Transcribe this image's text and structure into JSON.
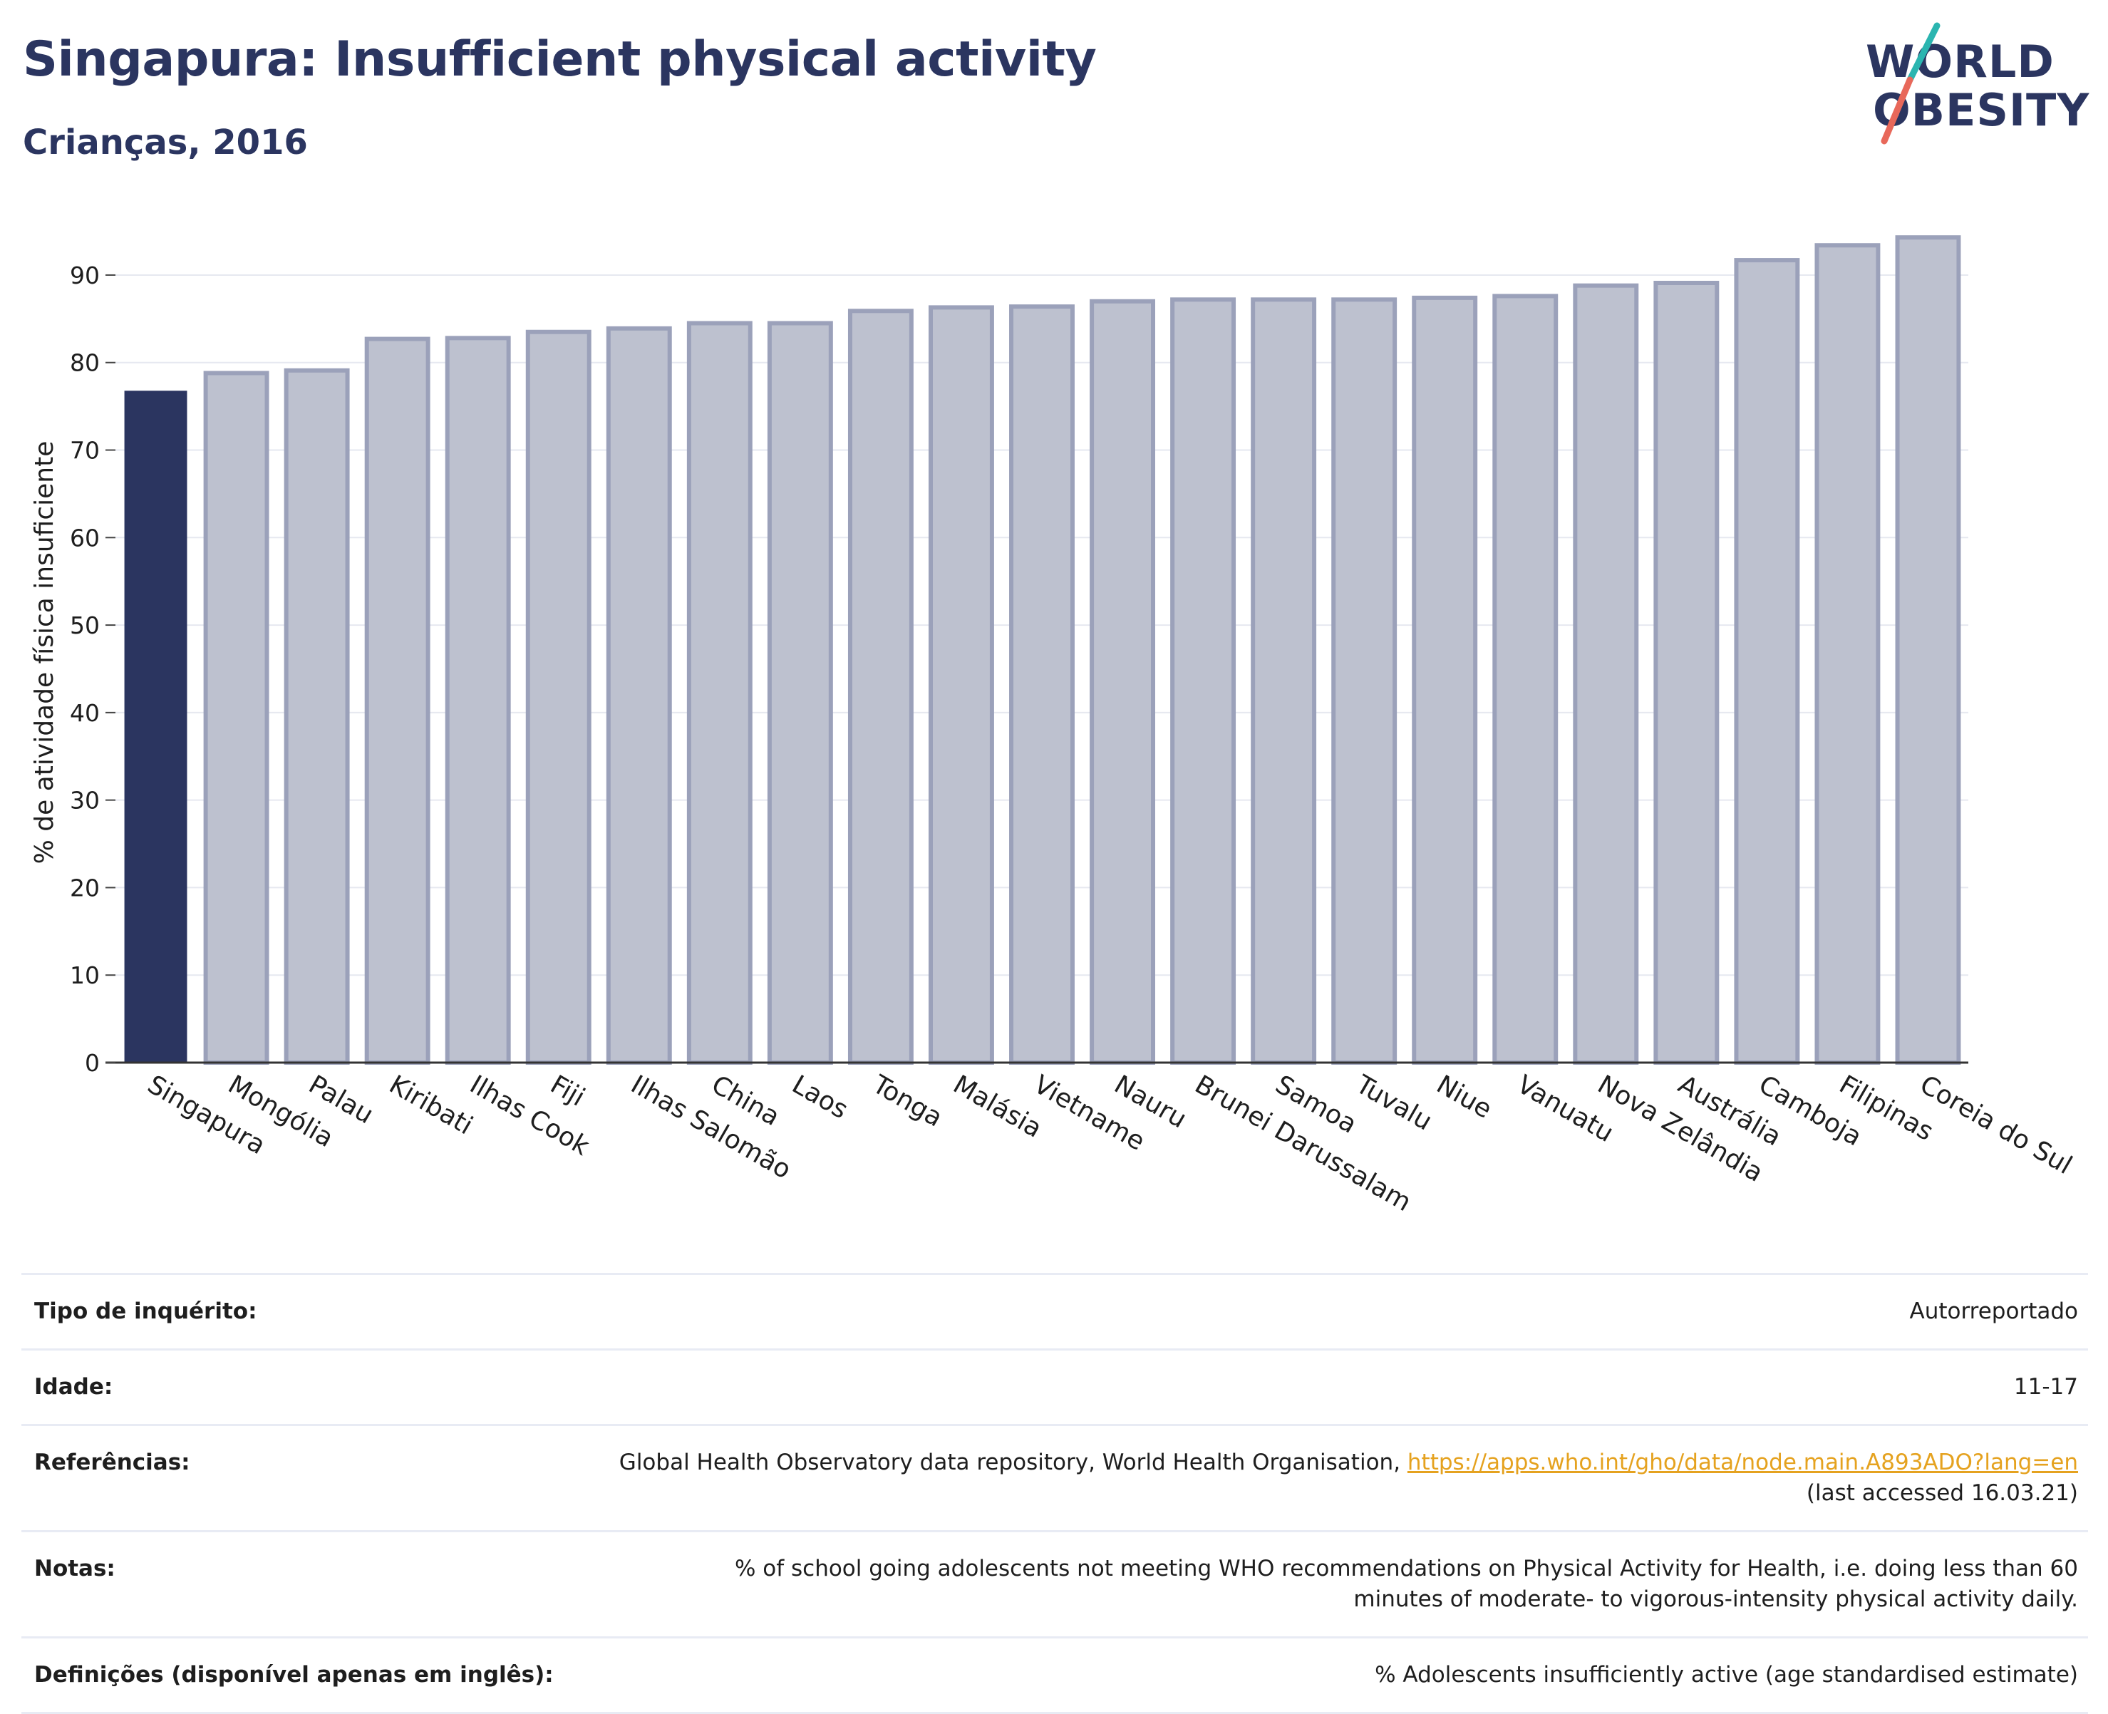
{
  "header": {
    "title": "Singapura: Insufficient physical activity",
    "subtitle": "Crianças, 2016"
  },
  "logo": {
    "line1": "WORLD",
    "line2": "OBESITY"
  },
  "colors": {
    "highlight_bar": "#2b3560",
    "other_bar_fill": "#bdc1cf",
    "other_bar_stroke": "#9ba1ba",
    "title": "#2b3560",
    "link": "#e5a21f",
    "logo_slash_teal": "#2bb5b0",
    "logo_slash_red": "#e8685a"
  },
  "chart_data": {
    "type": "bar",
    "title": "",
    "xlabel": "",
    "ylabel": "% de atividade física insuficiente",
    "ylim": [
      0,
      97
    ],
    "yticks": [
      0,
      10,
      20,
      30,
      40,
      50,
      60,
      70,
      80,
      90
    ],
    "grid": true,
    "highlight": "Singapura",
    "categories": [
      "Singapura",
      "Mongólia",
      "Palau",
      "Kiribati",
      "Ilhas Cook",
      "Fiji",
      "Ilhas Salomão",
      "China",
      "Laos",
      "Tonga",
      "Malásia",
      "Vietname",
      "Nauru",
      "Brunei Darussalam",
      "Samoa",
      "Tuvalu",
      "Niue",
      "Vanuatu",
      "Nova Zelândia",
      "Austrália",
      "Camboja",
      "Filipinas",
      "Coreia do Sul"
    ],
    "values": [
      76.7,
      78.8,
      79.1,
      82.7,
      82.8,
      83.5,
      83.9,
      84.5,
      84.5,
      85.9,
      86.3,
      86.4,
      87.0,
      87.2,
      87.2,
      87.2,
      87.4,
      87.6,
      88.8,
      89.1,
      91.7,
      93.4,
      94.3
    ]
  },
  "meta": [
    {
      "label": "Tipo de inquérito:",
      "value": "Autorreportado"
    },
    {
      "label": "Idade:",
      "value": "11-17"
    },
    {
      "label": "Referências:",
      "value": "Global Health Observatory data repository, World Health Organisation, ",
      "link": "https://apps.who.int/gho/data/node.main.A893ADO?lang=en",
      "suffix": "(last accessed 16.03.21)"
    },
    {
      "label": "Notas:",
      "value": "% of school going adolescents not meeting WHO recommendations on Physical Activity for Health, i.e. doing less than 60 minutes of moderate- to vigorous-intensity physical activity daily."
    },
    {
      "label": "Definições (disponível apenas em inglês):",
      "value": "% Adolescents insufficiently active (age standardised estimate)"
    }
  ]
}
